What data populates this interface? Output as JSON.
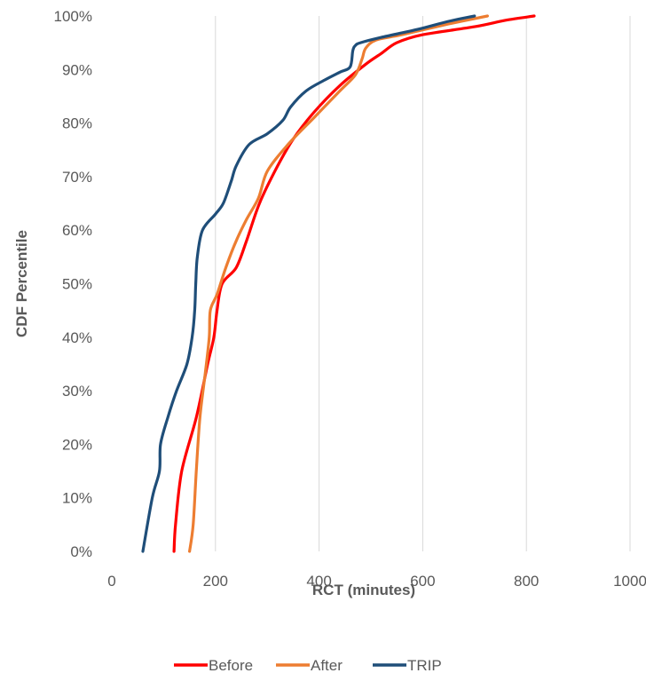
{
  "chart_data": {
    "type": "line",
    "title": "",
    "xlabel": "RCT (minutes)",
    "ylabel": "CDF Percentile",
    "xlim": [
      0,
      1000
    ],
    "ylim": [
      0,
      100
    ],
    "x_ticks": [
      0,
      200,
      400,
      600,
      800,
      1000
    ],
    "y_ticks": [
      0,
      10,
      20,
      30,
      40,
      50,
      60,
      70,
      80,
      90,
      100
    ],
    "x_tick_labels": [
      "0",
      "200",
      "400",
      "600",
      "800",
      "1000"
    ],
    "y_tick_labels": [
      "0%",
      "10%",
      "20%",
      "30%",
      "40%",
      "50%",
      "60%",
      "70%",
      "80%",
      "90%",
      "100%"
    ],
    "grid": "vertical",
    "legend_position": "bottom",
    "series": [
      {
        "name": "Before",
        "color": "#ff0000",
        "points": [
          [
            120,
            0
          ],
          [
            123,
            5
          ],
          [
            135,
            15
          ],
          [
            163,
            25
          ],
          [
            185,
            35
          ],
          [
            197,
            40
          ],
          [
            203,
            45
          ],
          [
            213,
            50
          ],
          [
            240,
            53
          ],
          [
            260,
            58
          ],
          [
            285,
            65
          ],
          [
            320,
            72
          ],
          [
            350,
            77
          ],
          [
            390,
            82
          ],
          [
            440,
            87
          ],
          [
            490,
            91
          ],
          [
            520,
            93
          ],
          [
            550,
            95
          ],
          [
            600,
            96.5
          ],
          [
            700,
            98
          ],
          [
            760,
            99.2
          ],
          [
            815,
            100
          ]
        ]
      },
      {
        "name": "After",
        "color": "#ed7d31",
        "points": [
          [
            150,
            0
          ],
          [
            157,
            5
          ],
          [
            163,
            15
          ],
          [
            170,
            25
          ],
          [
            180,
            33
          ],
          [
            188,
            40
          ],
          [
            190,
            45
          ],
          [
            203,
            48
          ],
          [
            220,
            53
          ],
          [
            240,
            58
          ],
          [
            260,
            62
          ],
          [
            283,
            66
          ],
          [
            300,
            71
          ],
          [
            340,
            76
          ],
          [
            390,
            81
          ],
          [
            440,
            86
          ],
          [
            470,
            89
          ],
          [
            483,
            92
          ],
          [
            490,
            94
          ],
          [
            510,
            95.5
          ],
          [
            560,
            96.5
          ],
          [
            650,
            98.5
          ],
          [
            725,
            100
          ]
        ]
      },
      {
        "name": "TRIP",
        "color": "#1f4e79",
        "points": [
          [
            60,
            0
          ],
          [
            78,
            10
          ],
          [
            92,
            15
          ],
          [
            94,
            20
          ],
          [
            108,
            25
          ],
          [
            125,
            30
          ],
          [
            145,
            35
          ],
          [
            155,
            40
          ],
          [
            160,
            45
          ],
          [
            162,
            50
          ],
          [
            165,
            55
          ],
          [
            175,
            60
          ],
          [
            200,
            63
          ],
          [
            215,
            65
          ],
          [
            230,
            69
          ],
          [
            240,
            72
          ],
          [
            265,
            76
          ],
          [
            300,
            78
          ],
          [
            330,
            80.5
          ],
          [
            345,
            83
          ],
          [
            375,
            86
          ],
          [
            410,
            88
          ],
          [
            440,
            89.5
          ],
          [
            460,
            90.5
          ],
          [
            465,
            93.5
          ],
          [
            470,
            94.5
          ],
          [
            480,
            95
          ],
          [
            520,
            96
          ],
          [
            590,
            97.5
          ],
          [
            650,
            99
          ],
          [
            700,
            100
          ]
        ]
      }
    ]
  }
}
